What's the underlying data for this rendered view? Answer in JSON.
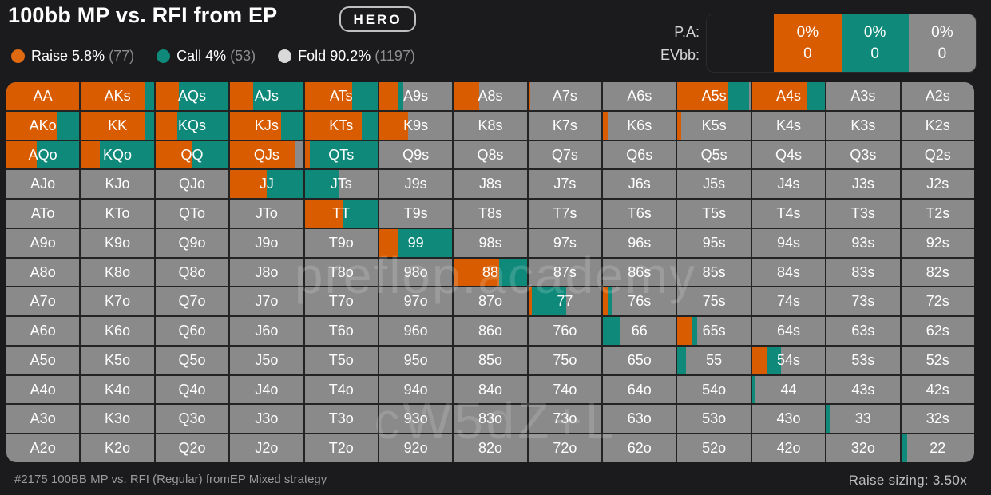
{
  "title": "100bb MP vs. RFI from EP",
  "hero_label": "HERO",
  "legend": [
    {
      "name": "Raise",
      "value": "5.8%",
      "count": "(77)",
      "color": "#e06a12"
    },
    {
      "name": "Call",
      "value": "4%",
      "count": "(53)",
      "color": "#0f8a7a"
    },
    {
      "name": "Fold",
      "value": "90.2%",
      "count": "(1197)",
      "color": "#d9d9d9"
    }
  ],
  "pa": {
    "label_pa": "P.A:",
    "label_ev": "EVbb:",
    "cells": [
      {
        "pct": "",
        "ev": "",
        "color": "#1b1b1d"
      },
      {
        "pct": "0%",
        "ev": "0",
        "color": "#d95c00"
      },
      {
        "pct": "0%",
        "ev": "0",
        "color": "#0f8a7a"
      },
      {
        "pct": "0%",
        "ev": "0",
        "color": "#8a8a8a"
      }
    ]
  },
  "colors": {
    "raise": "#d95c00",
    "call": "#0f8a7a",
    "fold": "#8a8a8a"
  },
  "grid": [
    [
      [
        "AA",
        1.0,
        0.0
      ],
      [
        "AKs",
        0.88,
        0.12
      ],
      [
        "AQs",
        0.32,
        0.68
      ],
      [
        "AJs",
        0.32,
        0.68
      ],
      [
        "ATs",
        0.65,
        0.35
      ],
      [
        "A9s",
        0.25,
        0.08
      ],
      [
        "A8s",
        0.35,
        0.0
      ],
      [
        "A7s",
        0.02,
        0.0
      ],
      [
        "A6s",
        0.0,
        0.0
      ],
      [
        "A5s",
        0.7,
        0.28
      ],
      [
        "A4s",
        0.75,
        0.25
      ],
      [
        "A3s",
        0.0,
        0.0
      ],
      [
        "A2s",
        0.0,
        0.0
      ]
    ],
    [
      [
        "AKo",
        0.7,
        0.3
      ],
      [
        "KK",
        0.88,
        0.12
      ],
      [
        "KQs",
        0.3,
        0.7
      ],
      [
        "KJs",
        0.7,
        0.3
      ],
      [
        "KTs",
        0.78,
        0.22
      ],
      [
        "K9s",
        0.4,
        0.0
      ],
      [
        "K8s",
        0.0,
        0.0
      ],
      [
        "K7s",
        0.0,
        0.0
      ],
      [
        "K6s",
        0.08,
        0.0
      ],
      [
        "K5s",
        0.05,
        0.0
      ],
      [
        "K4s",
        0.0,
        0.0
      ],
      [
        "K3s",
        0.0,
        0.0
      ],
      [
        "K2s",
        0.0,
        0.0
      ]
    ],
    [
      [
        "AQo",
        0.42,
        0.58
      ],
      [
        "KQo",
        0.26,
        0.74
      ],
      [
        "QQ",
        0.5,
        0.5
      ],
      [
        "QJs",
        0.88,
        0.0
      ],
      [
        "QTs",
        0.07,
        0.93
      ],
      [
        "Q9s",
        0.0,
        0.0
      ],
      [
        "Q8s",
        0.0,
        0.0
      ],
      [
        "Q7s",
        0.0,
        0.0
      ],
      [
        "Q6s",
        0.0,
        0.0
      ],
      [
        "Q5s",
        0.0,
        0.0
      ],
      [
        "Q4s",
        0.0,
        0.0
      ],
      [
        "Q3s",
        0.0,
        0.0
      ],
      [
        "Q2s",
        0.0,
        0.0
      ]
    ],
    [
      [
        "AJo",
        0.0,
        0.0
      ],
      [
        "KJo",
        0.0,
        0.0
      ],
      [
        "QJo",
        0.0,
        0.0
      ],
      [
        "JJ",
        0.5,
        0.5
      ],
      [
        "JTs",
        0.0,
        0.47
      ],
      [
        "J9s",
        0.0,
        0.0
      ],
      [
        "J8s",
        0.0,
        0.0
      ],
      [
        "J7s",
        0.0,
        0.0
      ],
      [
        "J6s",
        0.0,
        0.0
      ],
      [
        "J5s",
        0.0,
        0.0
      ],
      [
        "J4s",
        0.0,
        0.0
      ],
      [
        "J3s",
        0.0,
        0.0
      ],
      [
        "J2s",
        0.0,
        0.0
      ]
    ],
    [
      [
        "ATo",
        0.0,
        0.0
      ],
      [
        "KTo",
        0.0,
        0.0
      ],
      [
        "QTo",
        0.0,
        0.0
      ],
      [
        "JTo",
        0.0,
        0.0
      ],
      [
        "TT",
        0.52,
        0.48
      ],
      [
        "T9s",
        0.0,
        0.0
      ],
      [
        "T8s",
        0.0,
        0.0
      ],
      [
        "T7s",
        0.0,
        0.0
      ],
      [
        "T6s",
        0.0,
        0.0
      ],
      [
        "T5s",
        0.0,
        0.0
      ],
      [
        "T4s",
        0.0,
        0.0
      ],
      [
        "T3s",
        0.0,
        0.0
      ],
      [
        "T2s",
        0.0,
        0.0
      ]
    ],
    [
      [
        "A9o",
        0.0,
        0.0
      ],
      [
        "K9o",
        0.0,
        0.0
      ],
      [
        "Q9o",
        0.0,
        0.0
      ],
      [
        "J9o",
        0.0,
        0.0
      ],
      [
        "T9o",
        0.0,
        0.0
      ],
      [
        "99",
        0.25,
        0.75
      ],
      [
        "98s",
        0.0,
        0.0
      ],
      [
        "97s",
        0.0,
        0.0
      ],
      [
        "96s",
        0.0,
        0.0
      ],
      [
        "95s",
        0.0,
        0.0
      ],
      [
        "94s",
        0.0,
        0.0
      ],
      [
        "93s",
        0.0,
        0.0
      ],
      [
        "92s",
        0.0,
        0.0
      ]
    ],
    [
      [
        "A8o",
        0.0,
        0.0
      ],
      [
        "K8o",
        0.0,
        0.0
      ],
      [
        "Q8o",
        0.0,
        0.0
      ],
      [
        "J8o",
        0.0,
        0.0
      ],
      [
        "T8o",
        0.0,
        0.0
      ],
      [
        "98o",
        0.0,
        0.0
      ],
      [
        "88",
        0.62,
        0.38
      ],
      [
        "87s",
        0.0,
        0.0
      ],
      [
        "86s",
        0.0,
        0.0
      ],
      [
        "85s",
        0.0,
        0.0
      ],
      [
        "84s",
        0.0,
        0.0
      ],
      [
        "83s",
        0.0,
        0.0
      ],
      [
        "82s",
        0.0,
        0.0
      ]
    ],
    [
      [
        "A7o",
        0.0,
        0.0
      ],
      [
        "K7o",
        0.0,
        0.0
      ],
      [
        "Q7o",
        0.0,
        0.0
      ],
      [
        "J7o",
        0.0,
        0.0
      ],
      [
        "T7o",
        0.0,
        0.0
      ],
      [
        "97o",
        0.0,
        0.0
      ],
      [
        "87o",
        0.0,
        0.0
      ],
      [
        "77",
        0.05,
        0.47
      ],
      [
        "76s",
        0.07,
        0.05
      ],
      [
        "75s",
        0.0,
        0.0
      ],
      [
        "74s",
        0.0,
        0.0
      ],
      [
        "73s",
        0.0,
        0.0
      ],
      [
        "72s",
        0.0,
        0.0
      ]
    ],
    [
      [
        "A6o",
        0.0,
        0.0
      ],
      [
        "K6o",
        0.0,
        0.0
      ],
      [
        "Q6o",
        0.0,
        0.0
      ],
      [
        "J6o",
        0.0,
        0.0
      ],
      [
        "T6o",
        0.0,
        0.0
      ],
      [
        "96o",
        0.0,
        0.0
      ],
      [
        "86o",
        0.0,
        0.0
      ],
      [
        "76o",
        0.0,
        0.0
      ],
      [
        "66",
        0.0,
        0.24
      ],
      [
        "65s",
        0.2,
        0.07
      ],
      [
        "64s",
        0.0,
        0.0
      ],
      [
        "63s",
        0.0,
        0.0
      ],
      [
        "62s",
        0.0,
        0.0
      ]
    ],
    [
      [
        "A5o",
        0.0,
        0.0
      ],
      [
        "K5o",
        0.0,
        0.0
      ],
      [
        "Q5o",
        0.0,
        0.0
      ],
      [
        "J5o",
        0.0,
        0.0
      ],
      [
        "T5o",
        0.0,
        0.0
      ],
      [
        "95o",
        0.0,
        0.0
      ],
      [
        "85o",
        0.0,
        0.0
      ],
      [
        "75o",
        0.0,
        0.0
      ],
      [
        "65o",
        0.0,
        0.0
      ],
      [
        "55",
        0.0,
        0.12
      ],
      [
        "54s",
        0.2,
        0.2
      ],
      [
        "53s",
        0.0,
        0.0
      ],
      [
        "52s",
        0.0,
        0.0
      ]
    ],
    [
      [
        "A4o",
        0.0,
        0.0
      ],
      [
        "K4o",
        0.0,
        0.0
      ],
      [
        "Q4o",
        0.0,
        0.0
      ],
      [
        "J4o",
        0.0,
        0.0
      ],
      [
        "T4o",
        0.0,
        0.0
      ],
      [
        "94o",
        0.0,
        0.0
      ],
      [
        "84o",
        0.0,
        0.0
      ],
      [
        "74o",
        0.0,
        0.0
      ],
      [
        "64o",
        0.0,
        0.0
      ],
      [
        "54o",
        0.0,
        0.0
      ],
      [
        "44",
        0.0,
        0.04
      ],
      [
        "43s",
        0.0,
        0.0
      ],
      [
        "42s",
        0.0,
        0.0
      ]
    ],
    [
      [
        "A3o",
        0.0,
        0.0
      ],
      [
        "K3o",
        0.0,
        0.0
      ],
      [
        "Q3o",
        0.0,
        0.0
      ],
      [
        "J3o",
        0.0,
        0.0
      ],
      [
        "T3o",
        0.0,
        0.0
      ],
      [
        "93o",
        0.0,
        0.0
      ],
      [
        "83o",
        0.0,
        0.0
      ],
      [
        "73o",
        0.0,
        0.0
      ],
      [
        "63o",
        0.0,
        0.0
      ],
      [
        "53o",
        0.0,
        0.0
      ],
      [
        "43o",
        0.0,
        0.0
      ],
      [
        "33",
        0.0,
        0.04
      ],
      [
        "32s",
        0.0,
        0.0
      ]
    ],
    [
      [
        "A2o",
        0.0,
        0.0
      ],
      [
        "K2o",
        0.0,
        0.0
      ],
      [
        "Q2o",
        0.0,
        0.0
      ],
      [
        "J2o",
        0.0,
        0.0
      ],
      [
        "T2o",
        0.0,
        0.0
      ],
      [
        "92o",
        0.0,
        0.0
      ],
      [
        "82o",
        0.0,
        0.0
      ],
      [
        "72o",
        0.0,
        0.0
      ],
      [
        "62o",
        0.0,
        0.0
      ],
      [
        "52o",
        0.0,
        0.0
      ],
      [
        "42o",
        0.0,
        0.0
      ],
      [
        "32o",
        0.0,
        0.0
      ],
      [
        "22",
        0.0,
        0.08
      ]
    ]
  ],
  "watermark": "preflop.academy",
  "watermark_code": "cW5dZ+L",
  "footer": {
    "left": "#2175 100BB MP vs. RFI (Regular) fromEP Mixed strategy",
    "right": "Raise sizing: 3.50x"
  }
}
